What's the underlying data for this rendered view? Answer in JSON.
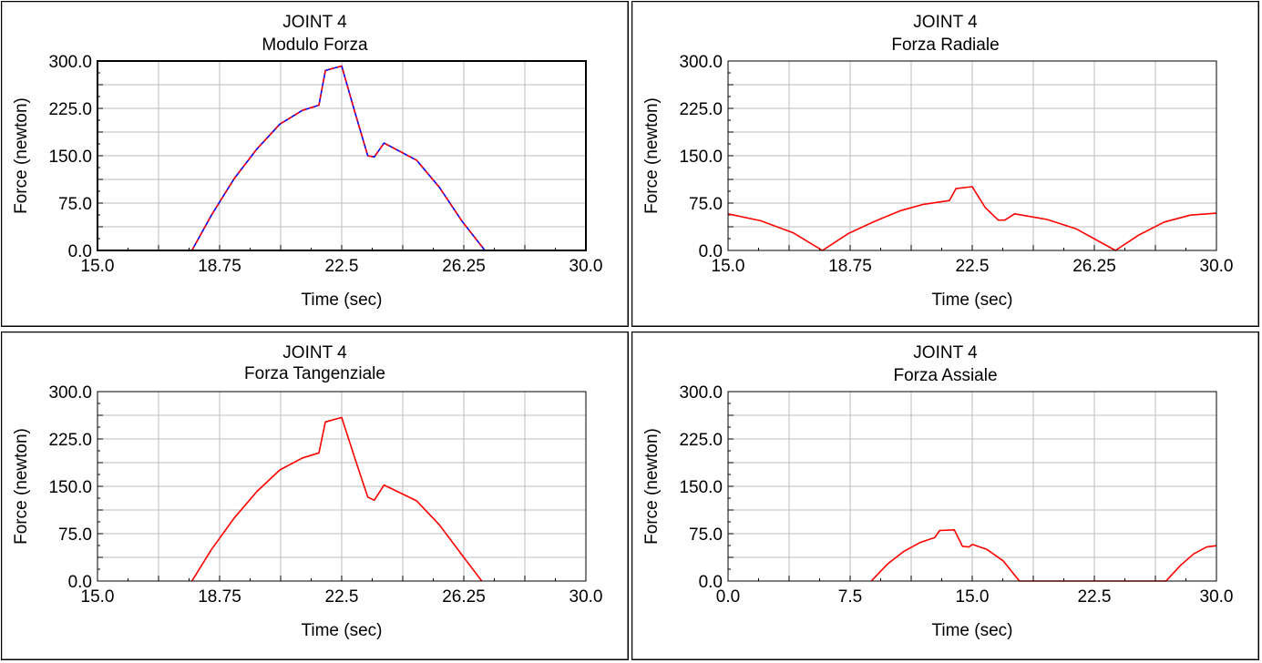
{
  "chart_data": [
    {
      "type": "line",
      "title": "JOINT 4",
      "subtitle": "Modulo Forza",
      "xlabel": "Time (sec)",
      "ylabel": "Force (newton)",
      "xlim": [
        15.0,
        30.0
      ],
      "ylim": [
        0.0,
        300.0
      ],
      "xticks": [
        "15.0",
        "18.75",
        "22.5",
        "26.25",
        "30.0"
      ],
      "yticks": [
        "0.0",
        "75.0",
        "150.0",
        "225.0",
        "300.0"
      ],
      "grid": true,
      "series": [
        {
          "color": "#0000ff",
          "x": [
            17.9,
            18.5,
            19.2,
            19.9,
            20.6,
            21.3,
            21.8,
            22.0,
            22.5,
            22.9,
            23.3,
            23.5,
            23.8,
            24.8,
            25.5,
            26.2,
            26.9
          ],
          "y": [
            0,
            56,
            114,
            161,
            200,
            222,
            230,
            285,
            292,
            220,
            150,
            148,
            170,
            143,
            100,
            46,
            0
          ]
        },
        {
          "color": "#ff0000",
          "dashed": true,
          "x": [
            17.9,
            18.5,
            19.2,
            19.9,
            20.6,
            21.3,
            21.8,
            22.0,
            22.5,
            22.9,
            23.3,
            23.5,
            23.8,
            24.8,
            25.5,
            26.2,
            26.9
          ],
          "y": [
            0,
            56,
            114,
            161,
            200,
            222,
            230,
            285,
            292,
            220,
            150,
            148,
            170,
            143,
            100,
            46,
            0
          ]
        }
      ]
    },
    {
      "type": "line",
      "title": "JOINT 4",
      "subtitle": "Forza Radiale",
      "xlabel": "Time (sec)",
      "ylabel": "Force (newton)",
      "xlim": [
        15.0,
        30.0
      ],
      "ylim": [
        0.0,
        300.0
      ],
      "xticks": [
        "15.0",
        "18.75",
        "22.5",
        "26.25",
        "30.0"
      ],
      "yticks": [
        "0.0",
        "75.0",
        "150.0",
        "225.0",
        "300.0"
      ],
      "grid": true,
      "series": [
        {
          "color": "#ff0000",
          "x": [
            15.0,
            16.0,
            17.0,
            17.9,
            18.7,
            19.5,
            20.3,
            21.0,
            21.8,
            22.0,
            22.5,
            22.9,
            23.3,
            23.5,
            23.8,
            24.8,
            25.7,
            26.9,
            27.6,
            28.4,
            29.2,
            30.0
          ],
          "y": [
            58,
            47,
            28,
            0,
            27,
            46,
            63,
            73,
            79,
            98,
            101,
            68,
            48,
            48,
            58,
            49,
            34,
            0,
            24,
            45,
            56,
            59
          ]
        }
      ]
    },
    {
      "type": "line",
      "title": "JOINT 4",
      "subtitle": "Forza Tangenziale",
      "xlabel": "Time (sec)",
      "ylabel": "Force (newton)",
      "xlim": [
        15.0,
        30.0
      ],
      "ylim": [
        0.0,
        300.0
      ],
      "xticks": [
        "15.0",
        "18.75",
        "22.5",
        "26.25",
        "30.0"
      ],
      "yticks": [
        "0.0",
        "75.0",
        "150.0",
        "225.0",
        "300.0"
      ],
      "grid": true,
      "series": [
        {
          "color": "#ff0000",
          "x": [
            17.9,
            18.5,
            19.2,
            19.9,
            20.6,
            21.3,
            21.8,
            22.0,
            22.5,
            22.9,
            23.3,
            23.5,
            23.8,
            24.8,
            25.5,
            26.2,
            26.8
          ],
          "y": [
            0,
            50,
            100,
            142,
            176,
            195,
            203,
            252,
            259,
            195,
            133,
            128,
            152,
            127,
            89,
            41,
            0
          ]
        }
      ]
    },
    {
      "type": "line",
      "title": "JOINT 4",
      "subtitle": "Forza Assiale",
      "xlabel": "Time (sec)",
      "ylabel": "Force (newton)",
      "xlim": [
        0.0,
        30.0
      ],
      "ylim": [
        0.0,
        300.0
      ],
      "xticks": [
        "0.0",
        "7.5",
        "15.0",
        "22.5",
        "30.0"
      ],
      "yticks": [
        "0.0",
        "75.0",
        "150.0",
        "225.0",
        "300.0"
      ],
      "grid": true,
      "series": [
        {
          "color": "#ff0000",
          "x": [
            8.8,
            9.8,
            10.8,
            11.8,
            12.7,
            13.0,
            13.9,
            14.4,
            14.8,
            15.0,
            15.9,
            16.9,
            17.9,
            26.9,
            27.8,
            28.6,
            29.4,
            30.0
          ],
          "y": [
            0,
            27,
            47,
            61,
            69,
            80,
            81,
            55,
            54,
            58,
            50,
            32,
            0,
            0,
            25,
            43,
            54,
            56
          ]
        }
      ]
    }
  ]
}
